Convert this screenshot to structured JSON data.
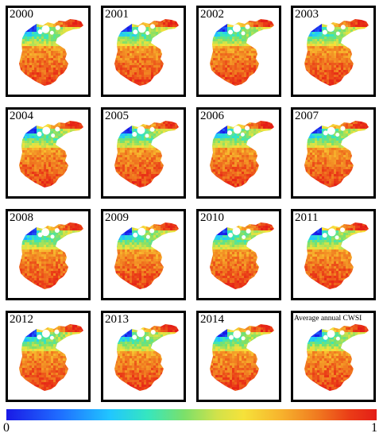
{
  "panels": [
    {
      "label": "2000"
    },
    {
      "label": "2001"
    },
    {
      "label": "2002"
    },
    {
      "label": "2003"
    },
    {
      "label": "2004"
    },
    {
      "label": "2005"
    },
    {
      "label": "2006"
    },
    {
      "label": "2007"
    },
    {
      "label": "2008"
    },
    {
      "label": "2009"
    },
    {
      "label": "2010"
    },
    {
      "label": "2011"
    },
    {
      "label": "2012"
    },
    {
      "label": "2013"
    },
    {
      "label": "2014"
    },
    {
      "label": "Average annual CWSI"
    }
  ],
  "colorbar": {
    "min_label": "0",
    "max_label": "1",
    "colors": [
      "#1a1ae6",
      "#21c6ff",
      "#7be06a",
      "#f6e23a",
      "#f07a20",
      "#e41e17"
    ]
  }
}
